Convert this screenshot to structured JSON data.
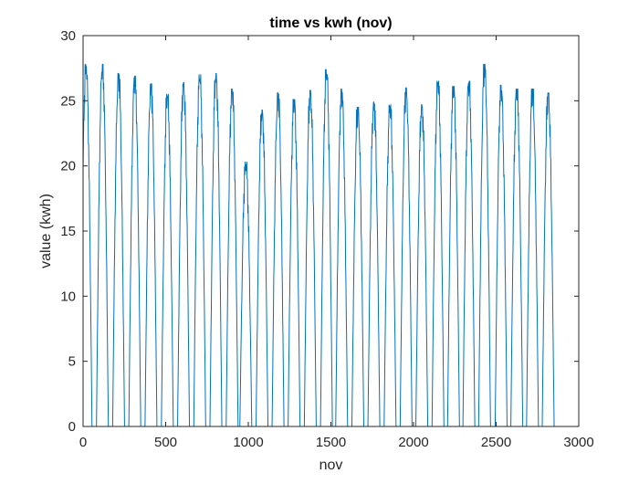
{
  "chart_data": {
    "type": "line",
    "title": "time vs kwh (nov)",
    "xlabel": "nov",
    "ylabel": "value (kwh)",
    "xlim": [
      0,
      3000
    ],
    "ylim": [
      0,
      30
    ],
    "xticks": [
      0,
      500,
      1000,
      1500,
      2000,
      2500,
      3000
    ],
    "yticks": [
      0,
      5,
      10,
      15,
      20,
      25,
      30
    ],
    "grid": false,
    "legend": "none",
    "series_color": "#0072BD",
    "daily_peaks": [
      {
        "center": 18,
        "peak": 27.8
      },
      {
        "center": 117,
        "peak": 27.8
      },
      {
        "center": 215,
        "peak": 27.1
      },
      {
        "center": 313,
        "peak": 26.9
      },
      {
        "center": 411,
        "peak": 26.3
      },
      {
        "center": 510,
        "peak": 25.5
      },
      {
        "center": 608,
        "peak": 26.4
      },
      {
        "center": 706,
        "peak": 27.0
      },
      {
        "center": 804,
        "peak": 27.1
      },
      {
        "center": 902,
        "peak": 25.9
      },
      {
        "center": 985,
        "peak": 20.3
      },
      {
        "center": 1083,
        "peak": 24.3
      },
      {
        "center": 1180,
        "peak": 25.6
      },
      {
        "center": 1277,
        "peak": 25.1
      },
      {
        "center": 1375,
        "peak": 25.8
      },
      {
        "center": 1473,
        "peak": 27.4
      },
      {
        "center": 1565,
        "peak": 25.9
      },
      {
        "center": 1663,
        "peak": 24.5
      },
      {
        "center": 1760,
        "peak": 24.9
      },
      {
        "center": 1858,
        "peak": 24.7
      },
      {
        "center": 1955,
        "peak": 26.0
      },
      {
        "center": 2050,
        "peak": 24.7
      },
      {
        "center": 2148,
        "peak": 26.5
      },
      {
        "center": 2242,
        "peak": 26.1
      },
      {
        "center": 2335,
        "peak": 26.5
      },
      {
        "center": 2430,
        "peak": 27.8
      },
      {
        "center": 2530,
        "peak": 26.2
      },
      {
        "center": 2625,
        "peak": 25.9
      },
      {
        "center": 2720,
        "peak": 25.9
      },
      {
        "center": 2815,
        "peak": 25.6
      }
    ]
  }
}
